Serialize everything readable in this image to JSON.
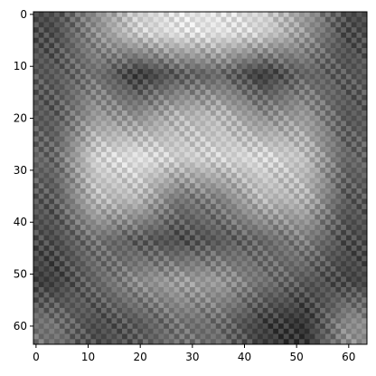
{
  "chart_data": {
    "type": "heatmap",
    "title": "",
    "xlabel": "",
    "ylabel": "",
    "colormap": "gray",
    "grid": false,
    "xlim": [
      -0.5,
      63.5
    ],
    "ylim": [
      63.5,
      -0.5
    ],
    "x_ticks": [
      0,
      10,
      20,
      30,
      40,
      50,
      60
    ],
    "y_ticks": [
      0,
      10,
      20,
      30,
      40,
      50,
      60
    ],
    "x_tick_labels": [
      "0",
      "10",
      "20",
      "30",
      "40",
      "50",
      "60"
    ],
    "y_tick_labels": [
      "0",
      "10",
      "20",
      "30",
      "40",
      "50",
      "60"
    ],
    "image_size": [
      64,
      64
    ],
    "value_range": [
      0,
      1
    ],
    "description_of_values": "grayscale intensity, 0 = black, 1 = white",
    "coarse_grid_8x8": [
      [
        0.3,
        0.55,
        0.8,
        0.88,
        0.88,
        0.82,
        0.6,
        0.3
      ],
      [
        0.35,
        0.45,
        0.22,
        0.35,
        0.4,
        0.22,
        0.4,
        0.35
      ],
      [
        0.35,
        0.6,
        0.55,
        0.7,
        0.72,
        0.55,
        0.6,
        0.35
      ],
      [
        0.4,
        0.82,
        0.88,
        0.8,
        0.82,
        0.85,
        0.75,
        0.4
      ],
      [
        0.35,
        0.72,
        0.72,
        0.45,
        0.5,
        0.72,
        0.7,
        0.35
      ],
      [
        0.3,
        0.45,
        0.35,
        0.3,
        0.35,
        0.4,
        0.5,
        0.3
      ],
      [
        0.25,
        0.4,
        0.55,
        0.62,
        0.6,
        0.45,
        0.35,
        0.28
      ],
      [
        0.45,
        0.3,
        0.35,
        0.45,
        0.42,
        0.25,
        0.2,
        0.55
      ]
    ]
  }
}
